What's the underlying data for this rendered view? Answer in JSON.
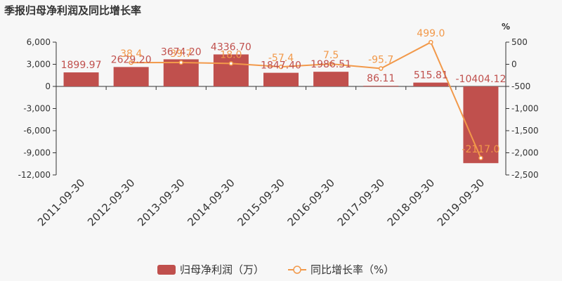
{
  "colors": {
    "bar": "#c0504d",
    "line": "#f2994a",
    "axis": "#333333",
    "background": "#f7f7f7"
  },
  "chart_data": {
    "type": "bar",
    "title": "季报归母净利润及同比增长率",
    "categories": [
      "2011-09-30",
      "2012-09-30",
      "2013-09-30",
      "2014-09-30",
      "2015-09-30",
      "2016-09-30",
      "2017-09-30",
      "2018-09-30",
      "2019-09-30"
    ],
    "series": [
      {
        "name": "归母净利润（万）",
        "type": "bar",
        "axis": "left",
        "values": [
          1899.97,
          2629.2,
          3674.2,
          4336.7,
          1847.4,
          1986.51,
          86.11,
          515.81,
          -10404.12
        ],
        "labels": [
          "1899.97",
          "2629.20",
          "3674.20",
          "4336.70",
          "1847.40",
          "1986.51",
          "86.11",
          "515.81",
          "-10404.12"
        ]
      },
      {
        "name": "同比增长率（%）",
        "type": "line",
        "axis": "right",
        "values": [
          null,
          38.4,
          39.7,
          18.0,
          -57.4,
          7.5,
          -95.7,
          499.0,
          -2117.0
        ],
        "labels": [
          "",
          "38.4",
          "39.7",
          "18.0",
          "-57.4",
          "7.5",
          "-95.7",
          "499.0",
          "-2117.0"
        ]
      }
    ],
    "y_left": {
      "ylim": [
        -12000,
        6000
      ],
      "ticks": [
        6000,
        3000,
        0,
        -3000,
        -6000,
        -9000,
        -12000
      ],
      "tick_labels": [
        "6,000",
        "3,000",
        "0",
        "-3,000",
        "-6,000",
        "-9,000",
        "-12,000"
      ]
    },
    "y_right": {
      "label": "%",
      "ylim": [
        -2500,
        500
      ],
      "ticks": [
        500,
        0,
        -500,
        -1000,
        -1500,
        -2000,
        -2500
      ],
      "tick_labels": [
        "500",
        "0",
        "-500",
        "-1,000",
        "-1,500",
        "-2,000",
        "-2,500"
      ]
    },
    "grid": false,
    "legend_position": "bottom-center"
  }
}
